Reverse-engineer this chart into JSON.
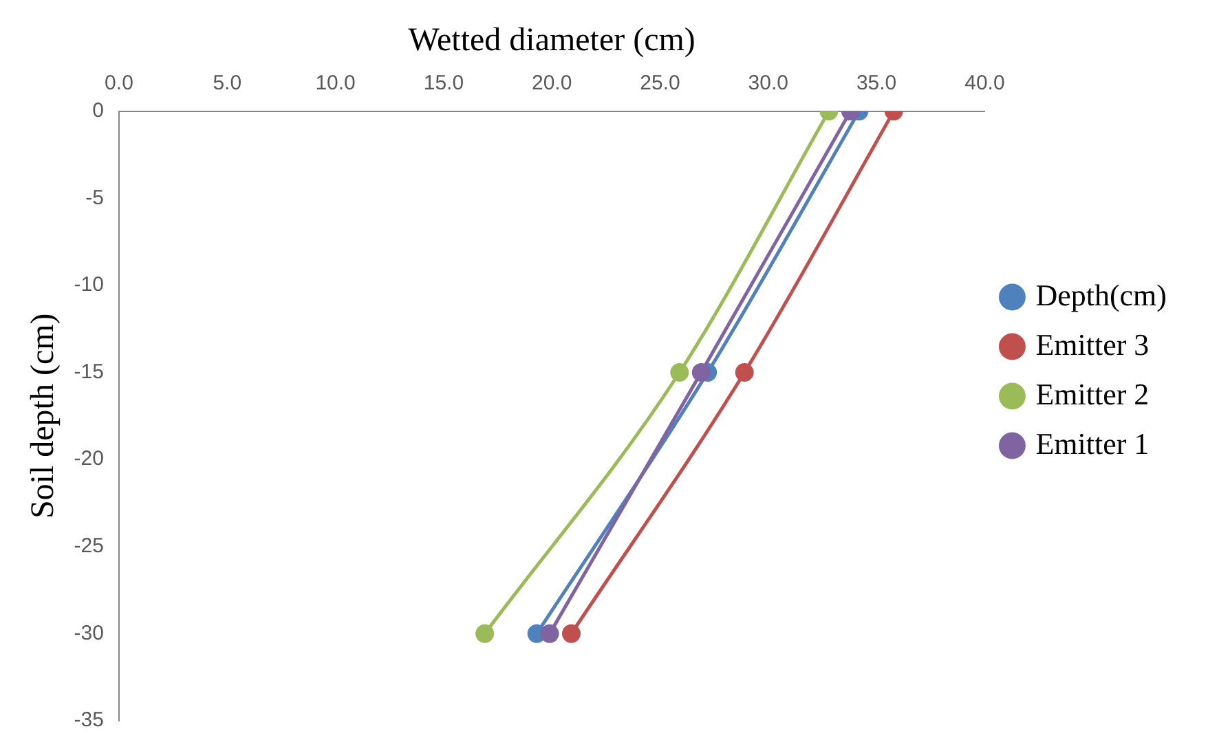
{
  "chart_data": {
    "type": "line",
    "xlabel": "Wetted diameter (cm)",
    "ylabel": "Soil depth (cm)",
    "xlim": [
      0,
      40
    ],
    "xticks": [
      {
        "value": 0,
        "label": "0.0"
      },
      {
        "value": 5,
        "label": "5.0"
      },
      {
        "value": 10,
        "label": "10.0"
      },
      {
        "value": 15,
        "label": "15.0"
      },
      {
        "value": 20,
        "label": "20.0"
      },
      {
        "value": 25,
        "label": "25.0"
      },
      {
        "value": 30,
        "label": "30.0"
      },
      {
        "value": 35,
        "label": "35.0"
      },
      {
        "value": 40,
        "label": "40.0"
      }
    ],
    "ylim": [
      -35,
      0
    ],
    "yticks": [
      -35,
      -30,
      -25,
      -20,
      -15,
      -10,
      -5,
      0
    ],
    "series": [
      {
        "name": "Depth(cm)",
        "color": "#4f81bd",
        "x": [
          34.2,
          27.2,
          19.3
        ],
        "values": [
          0,
          -15,
          -30
        ]
      },
      {
        "name": "Emitter 3",
        "color": "#c0504d",
        "x": [
          35.8,
          28.9,
          20.9
        ],
        "values": [
          0,
          -15,
          -30
        ]
      },
      {
        "name": "Emitter 2",
        "color": "#9bbb59",
        "x": [
          32.8,
          25.9,
          16.9
        ],
        "values": [
          0,
          -15,
          -30
        ]
      },
      {
        "name": "Emitter 1",
        "color": "#8064a2",
        "x": [
          33.8,
          26.9,
          19.9
        ],
        "values": [
          0,
          -15,
          -30
        ]
      }
    ],
    "marker": "circle",
    "line_style": "solid",
    "grid": false,
    "legend": "right"
  }
}
